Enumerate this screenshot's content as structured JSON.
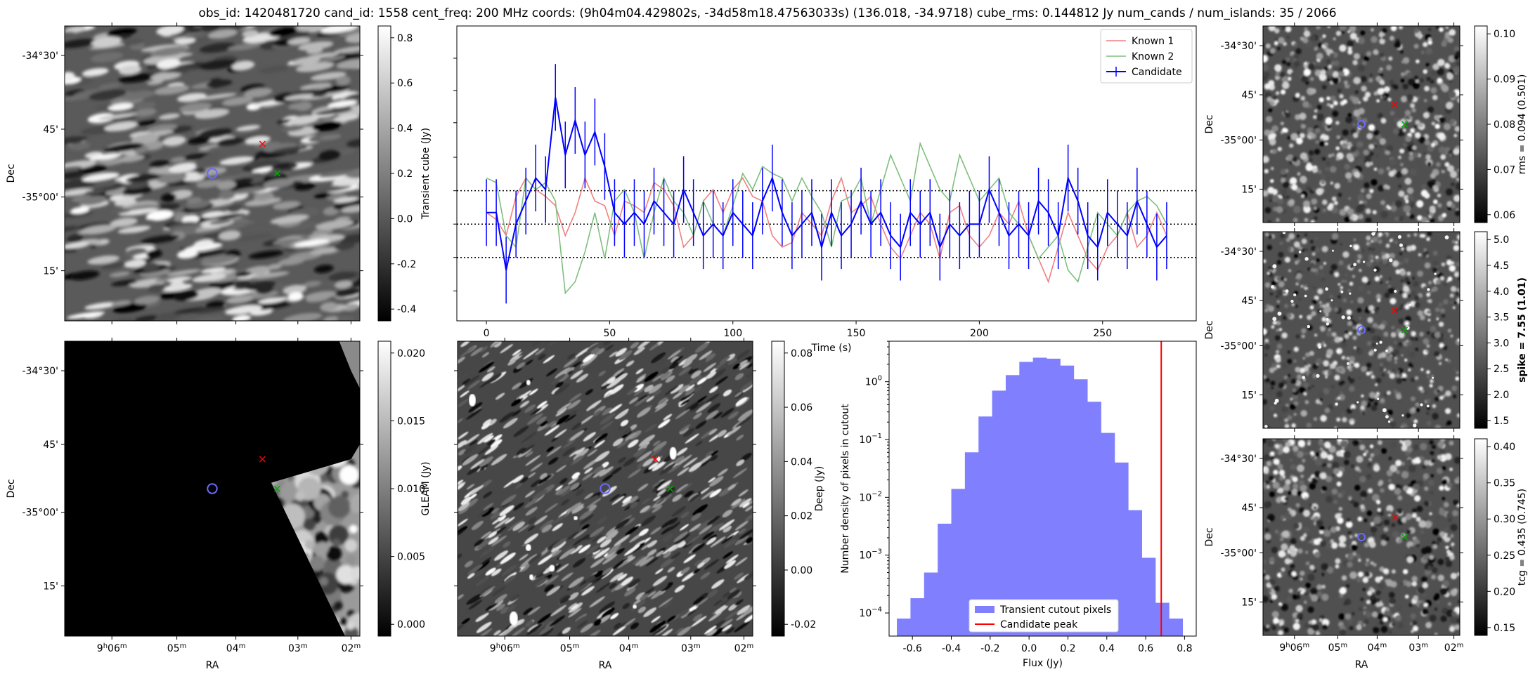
{
  "title": "obs_id: 1420481720 cand_id: 1558 cent_freq: 200 MHz coords: (9h04m04.429802s, -34d58m18.47563033s) (136.018, -34.9718) cube_rms: 0.144812 Jy num_cands / num_islands: 35 / 2066",
  "colors": {
    "known1": "#f08080",
    "known2": "#7fbf7f",
    "candidate": "#0000ff",
    "hist": "#8080ff",
    "peak": "#ff0000",
    "red_marker": "#ff0000",
    "green_marker": "#00aa00",
    "blue_marker": "#6a6aff"
  },
  "image_axes": {
    "dec_ticks": [
      "-34°30'",
      "45'",
      "-35°00'",
      "15'"
    ],
    "ra_ticks": [
      "9h06m",
      "05m",
      "04m",
      "03m",
      "02m"
    ],
    "dec_label": "Dec",
    "ra_label": "RA"
  },
  "panels": {
    "transient": {
      "colorbar_label": "Transient cube (Jy)",
      "colorbar_ticks": [
        "0.8",
        "0.6",
        "0.4",
        "0.2",
        "0.0",
        "-0.2",
        "-0.4"
      ],
      "seed": 11,
      "style": "stripe"
    },
    "gleam": {
      "colorbar_label": "GLEAM (Jy)",
      "colorbar_ticks": [
        "0.020",
        "0.015",
        "0.010",
        "0.005",
        "0.000"
      ],
      "seed": 23,
      "style": "gleam"
    },
    "deep": {
      "colorbar_label": "Deep (Jy)",
      "colorbar_ticks": [
        "0.08",
        "0.06",
        "0.04",
        "0.02",
        "0.00",
        "-0.02"
      ],
      "seed": 37,
      "style": "deep"
    },
    "rms": {
      "colorbar_label": "rms = 0.094 (0.501)",
      "colorbar_ticks": [
        "0.10",
        "0.09",
        "0.08",
        "0.07",
        "0.06"
      ],
      "seed": 41,
      "style": "fine"
    },
    "spike": {
      "colorbar_label": "spike = 7.55 (1.01)",
      "colorbar_ticks": [
        "5.0",
        "4.5",
        "4.0",
        "3.5",
        "3.0",
        "2.5",
        "2.0",
        "1.5"
      ],
      "seed": 53,
      "style": "spike"
    },
    "tcg": {
      "colorbar_label": "tcg = 0.435 (0.745)",
      "colorbar_ticks": [
        "0.40",
        "0.35",
        "0.30",
        "0.25",
        "0.20",
        "0.15"
      ],
      "seed": 67,
      "style": "fine"
    }
  },
  "chart_data": [
    {
      "type": "line",
      "name": "lightcurve",
      "xlabel": "Time (s)",
      "ylabel": "",
      "xlim": [
        -12,
        288
      ],
      "ylim": [
        -0.42,
        0.86
      ],
      "xticks": [
        0,
        50,
        100,
        150,
        200,
        250
      ],
      "hlines": [
        -0.1448,
        0.0,
        0.1448
      ],
      "x": [
        0,
        4,
        8,
        12,
        16,
        20,
        24,
        28,
        32,
        36,
        40,
        44,
        48,
        52,
        56,
        60,
        64,
        68,
        72,
        76,
        80,
        84,
        88,
        92,
        96,
        100,
        104,
        108,
        112,
        116,
        120,
        124,
        128,
        132,
        136,
        140,
        144,
        148,
        152,
        156,
        160,
        164,
        168,
        172,
        176,
        180,
        184,
        188,
        192,
        196,
        200,
        204,
        208,
        212,
        216,
        220,
        224,
        228,
        232,
        236,
        240,
        244,
        248,
        252,
        256,
        260,
        264,
        268,
        272,
        276
      ],
      "series": [
        {
          "name": "Known 1",
          "values": [
            0.05,
            0.02,
            -0.05,
            0.12,
            0.2,
            0.15,
            0.12,
            0.08,
            -0.05,
            0.05,
            0.2,
            0.1,
            0.08,
            -0.05,
            0.1,
            0.08,
            0.05,
            0.18,
            0.15,
            0.08,
            -0.1,
            -0.05,
            0.1,
            0.15,
            0.05,
            0.15,
            0.2,
            0.12,
            0.1,
            -0.05,
            -0.1,
            -0.08,
            0.05,
            0.0,
            -0.05,
            0.1,
            0.2,
            0.05,
            0.08,
            0.12,
            0.0,
            -0.1,
            -0.15,
            -0.05,
            0.05,
            0.0,
            -0.15,
            0.05,
            0.08,
            -0.05,
            -0.1,
            -0.05,
            0.05,
            0.0,
            0.1,
            -0.05,
            -0.15,
            -0.25,
            -0.1,
            0.05,
            -0.05,
            -0.15,
            -0.2,
            -0.1,
            -0.05,
            0.05,
            -0.1,
            -0.05,
            0.05,
            -0.05
          ]
        },
        {
          "name": "Known 2",
          "values": [
            0.2,
            0.18,
            -0.05,
            -0.1,
            0.2,
            0.15,
            0.18,
            0.1,
            -0.3,
            -0.25,
            -0.12,
            0.05,
            -0.15,
            0.1,
            0.15,
            0.05,
            -0.15,
            0.05,
            0.2,
            0.1,
            0.05,
            -0.05,
            0.1,
            0.0,
            -0.05,
            0.08,
            0.22,
            0.15,
            0.25,
            0.22,
            0.2,
            0.1,
            0.2,
            0.12,
            0.05,
            -0.1,
            0.1,
            0.12,
            0.2,
            0.0,
            0.15,
            0.3,
            0.2,
            0.1,
            0.35,
            0.25,
            0.15,
            0.1,
            0.3,
            0.2,
            0.1,
            0.15,
            0.2,
            0.05,
            0.0,
            -0.05,
            -0.15,
            -0.1,
            -0.05,
            -0.2,
            -0.25,
            -0.1,
            0.05,
            0.0,
            -0.05,
            0.05,
            0.1,
            0.12,
            0.08,
            0.0
          ]
        },
        {
          "name": "Candidate",
          "values": [
            0.05,
            0.05,
            -0.2,
            0.0,
            0.1,
            0.2,
            0.15,
            0.55,
            0.3,
            0.45,
            0.3,
            0.4,
            0.25,
            0.05,
            0.0,
            0.05,
            0.0,
            0.1,
            0.05,
            0.0,
            0.15,
            0.05,
            -0.05,
            0.0,
            -0.05,
            0.05,
            0.0,
            -0.05,
            0.1,
            0.2,
            0.05,
            -0.05,
            0.0,
            0.05,
            -0.1,
            0.05,
            -0.05,
            0.0,
            0.1,
            0.0,
            0.05,
            -0.05,
            -0.1,
            0.05,
            0.0,
            0.05,
            -0.1,
            0.0,
            -0.05,
            0.0,
            0.0,
            0.15,
            0.05,
            -0.05,
            0.0,
            -0.05,
            0.1,
            0.05,
            -0.05,
            0.2,
            0.1,
            -0.05,
            -0.1,
            0.05,
            0.0,
            -0.05,
            0.1,
            0.0,
            -0.1,
            -0.05
          ],
          "err": 0.1448
        }
      ],
      "legend": [
        "Known 1",
        "Known 2",
        "Candidate"
      ],
      "legend_loc": "top-right"
    },
    {
      "type": "bar",
      "name": "histogram",
      "xlabel": "Flux (Jy)",
      "ylabel": "Number density of pixels in cutout",
      "yscale": "log",
      "xlim": [
        -0.72,
        0.86
      ],
      "ylim_log10": [
        -4.4,
        0.7
      ],
      "xticks": [
        -0.6,
        -0.4,
        -0.2,
        0.0,
        0.2,
        0.4,
        0.6,
        0.8
      ],
      "yticks_exp": [
        -4,
        -3,
        -2,
        -1,
        0
      ],
      "bin_edges": [
        -0.68,
        -0.61,
        -0.54,
        -0.47,
        -0.4,
        -0.33,
        -0.26,
        -0.19,
        -0.12,
        -0.05,
        0.02,
        0.09,
        0.16,
        0.23,
        0.3,
        0.37,
        0.44,
        0.51,
        0.58,
        0.65,
        0.72,
        0.79
      ],
      "values": [
        8e-05,
        0.00018,
        0.0005,
        0.0035,
        0.014,
        0.06,
        0.25,
        0.7,
        1.3,
        2.2,
        2.6,
        2.5,
        1.9,
        1.1,
        0.45,
        0.13,
        0.04,
        0.006,
        0.0009,
        0.00015,
        8e-05
      ],
      "peak": 0.68,
      "legend": [
        "Transient cutout pixels",
        "Candidate peak"
      ],
      "legend_loc": "bottom-center"
    }
  ]
}
